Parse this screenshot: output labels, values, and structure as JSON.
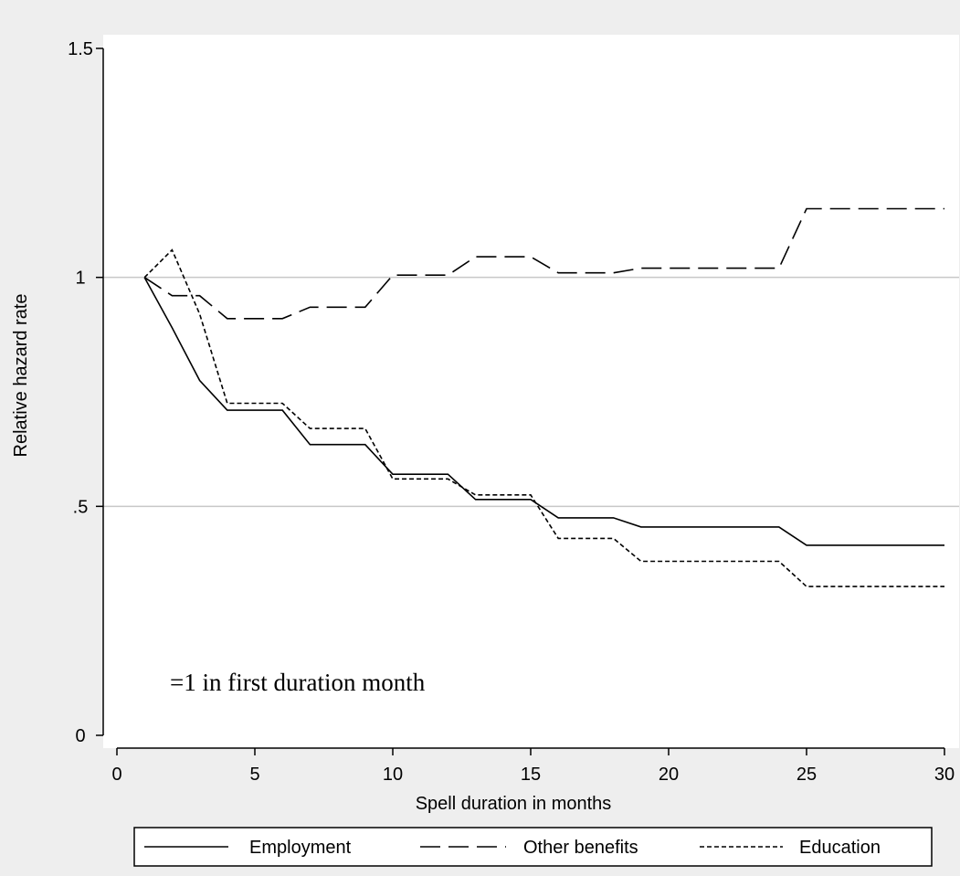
{
  "chart_data": {
    "type": "line",
    "title": "",
    "xlabel": "Spell duration in months",
    "ylabel": "Relative hazard rate",
    "xlim": [
      0,
      30
    ],
    "ylim": [
      0,
      1.5
    ],
    "x_ticks": [
      0,
      5,
      10,
      15,
      20,
      25,
      30
    ],
    "x_tick_labels": [
      "0",
      "5",
      "10",
      "15",
      "20",
      "25",
      "30"
    ],
    "y_ticks": [
      0,
      0.5,
      1,
      1.5
    ],
    "y_tick_labels": [
      "0",
      ".5",
      "1",
      "1.5"
    ],
    "grid": "horizontal at .5 and 1",
    "legend_position": "bottom",
    "annotation": "=1 in first duration month",
    "series": [
      {
        "name": "Employment",
        "style": "solid",
        "x": [
          1,
          2,
          3,
          4,
          5,
          6,
          7,
          8,
          9,
          10,
          11,
          12,
          13,
          14,
          15,
          16,
          17,
          18,
          19,
          20,
          21,
          22,
          23,
          24,
          25,
          26,
          27,
          28,
          29,
          30
        ],
        "values": [
          1.0,
          0.89,
          0.775,
          0.71,
          0.71,
          0.71,
          0.635,
          0.635,
          0.635,
          0.57,
          0.57,
          0.57,
          0.515,
          0.515,
          0.515,
          0.475,
          0.475,
          0.475,
          0.455,
          0.455,
          0.455,
          0.455,
          0.455,
          0.455,
          0.415,
          0.415,
          0.415,
          0.415,
          0.415,
          0.415
        ]
      },
      {
        "name": "Other benefits",
        "style": "long-dash",
        "x": [
          1,
          2,
          3,
          4,
          5,
          6,
          7,
          8,
          9,
          10,
          11,
          12,
          13,
          14,
          15,
          16,
          17,
          18,
          19,
          20,
          21,
          22,
          23,
          24,
          25,
          26,
          27,
          28,
          29,
          30
        ],
        "values": [
          1.0,
          0.96,
          0.96,
          0.91,
          0.91,
          0.91,
          0.935,
          0.935,
          0.935,
          1.005,
          1.005,
          1.005,
          1.045,
          1.045,
          1.045,
          1.01,
          1.01,
          1.01,
          1.02,
          1.02,
          1.02,
          1.02,
          1.02,
          1.02,
          1.15,
          1.15,
          1.15,
          1.15,
          1.15,
          1.15
        ]
      },
      {
        "name": "Education",
        "style": "short-dash",
        "x": [
          1,
          2,
          3,
          4,
          5,
          6,
          7,
          8,
          9,
          10,
          11,
          12,
          13,
          14,
          15,
          16,
          17,
          18,
          19,
          20,
          21,
          22,
          23,
          24,
          25,
          26,
          27,
          28,
          29,
          30
        ],
        "values": [
          1.0,
          1.06,
          0.92,
          0.725,
          0.725,
          0.725,
          0.67,
          0.67,
          0.67,
          0.56,
          0.56,
          0.56,
          0.525,
          0.525,
          0.525,
          0.43,
          0.43,
          0.43,
          0.38,
          0.38,
          0.38,
          0.38,
          0.38,
          0.38,
          0.325,
          0.325,
          0.325,
          0.325,
          0.325,
          0.325
        ]
      }
    ]
  }
}
